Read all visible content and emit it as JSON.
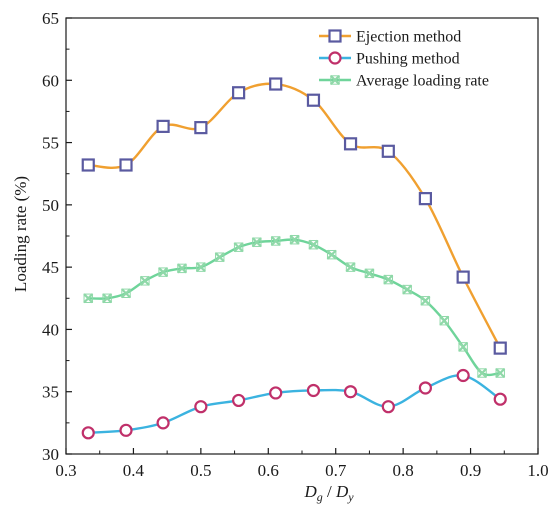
{
  "chart_data": {
    "type": "line",
    "xlabel": {
      "main": "D",
      "sub_num": "g",
      "sep": " / ",
      "main2": "D",
      "sub_den": "y"
    },
    "ylabel": "Loading rate (%)",
    "xlim": [
      0.3,
      1.0
    ],
    "ylim": [
      30,
      65
    ],
    "x_ticks": [
      0.3,
      0.4,
      0.5,
      0.6,
      0.7,
      0.8,
      0.9,
      1.0
    ],
    "x_tick_labels": [
      "0.3",
      "0.4",
      "0.5",
      "0.6",
      "0.7",
      "0.8",
      "0.9",
      "1.0"
    ],
    "y_ticks": [
      30,
      35,
      40,
      45,
      50,
      55,
      60,
      65
    ],
    "y_tick_labels": [
      "30",
      "35",
      "40",
      "45",
      "50",
      "55",
      "60",
      "65"
    ],
    "grid": false,
    "legend_position": "top-right",
    "series": [
      {
        "name": "Ejection method",
        "color": "#f0a030",
        "marker": "square",
        "marker_color": "#5a5aa0",
        "x": [
          0.333,
          0.389,
          0.444,
          0.5,
          0.556,
          0.611,
          0.667,
          0.722,
          0.778,
          0.833,
          0.889,
          0.944
        ],
        "values": [
          53.2,
          53.2,
          56.3,
          56.2,
          59.0,
          59.7,
          58.4,
          54.9,
          54.3,
          50.5,
          44.2,
          38.5
        ]
      },
      {
        "name": "Pushing method",
        "color": "#3bb3e0",
        "marker": "circle",
        "marker_color": "#c0306a",
        "x": [
          0.333,
          0.389,
          0.444,
          0.5,
          0.556,
          0.611,
          0.667,
          0.722,
          0.778,
          0.833,
          0.889,
          0.944
        ],
        "values": [
          31.7,
          31.9,
          32.5,
          33.8,
          34.3,
          34.9,
          35.1,
          35.0,
          33.8,
          35.3,
          36.3,
          34.4
        ]
      },
      {
        "name": "Average loading rate",
        "color": "#6fd49a",
        "marker": "x-cross",
        "marker_color": "#8fd8a8",
        "x": [
          0.333,
          0.361,
          0.389,
          0.417,
          0.444,
          0.472,
          0.5,
          0.528,
          0.556,
          0.583,
          0.611,
          0.639,
          0.667,
          0.694,
          0.722,
          0.75,
          0.778,
          0.806,
          0.833,
          0.861,
          0.889,
          0.917,
          0.944
        ],
        "values": [
          42.5,
          42.5,
          42.9,
          43.9,
          44.6,
          44.9,
          45.0,
          45.8,
          46.6,
          47.0,
          47.1,
          47.2,
          46.8,
          46.0,
          45.0,
          44.5,
          44.0,
          43.2,
          42.3,
          40.7,
          38.6,
          36.5,
          36.5
        ]
      }
    ]
  }
}
